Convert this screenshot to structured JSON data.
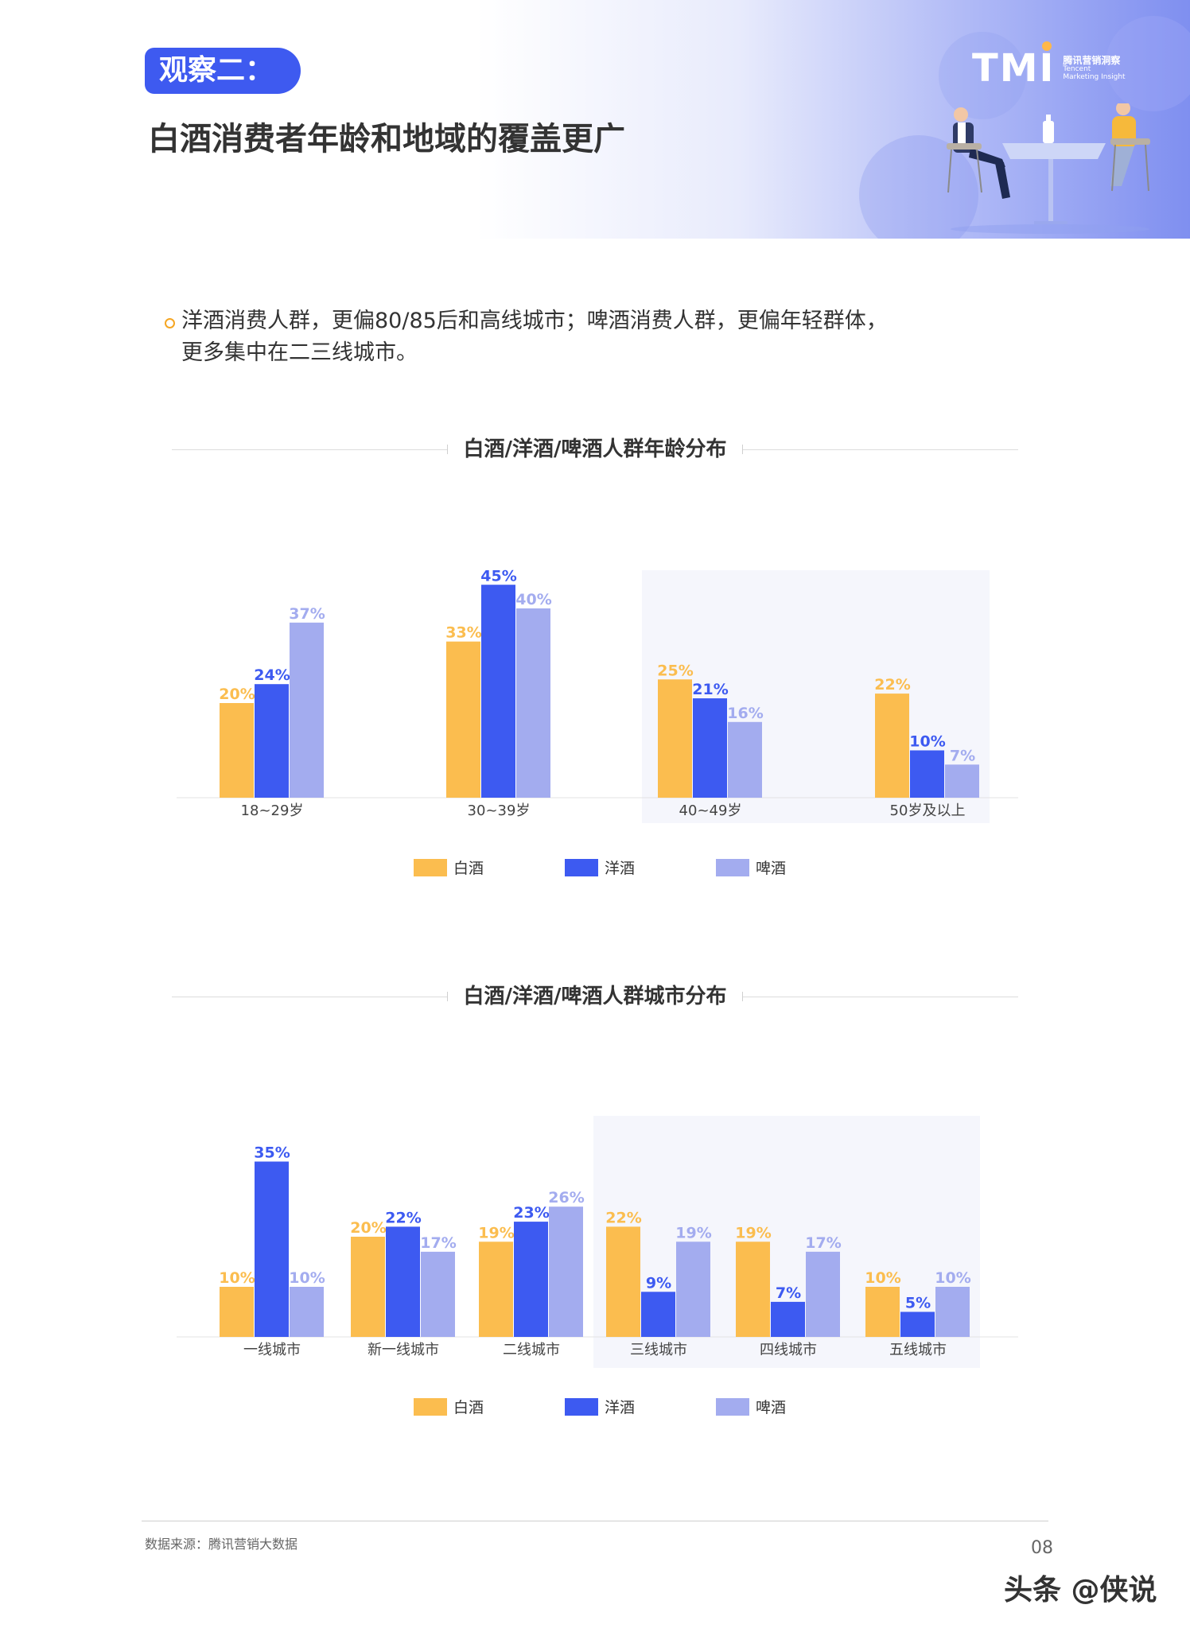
{
  "header": {
    "badge": "观察二：",
    "title": "白酒消费者年龄和地域的覆盖更广",
    "logo_mark": "TMI",
    "logo_cn": "腾讯营销洞察",
    "logo_en_1": "Tencent",
    "logo_en_2": "Marketing Insight"
  },
  "bullet": {
    "line1": "洋酒消费人群，更偏80/85后和高线城市；啤酒消费人群，更偏年轻群体，",
    "line2": "更多集中在二三线城市。"
  },
  "colors": {
    "baijiu": "#fbbd4f",
    "yangjiu": "#3d5af1",
    "pijiu": "#a3acef",
    "highlight": "#f5f6fc"
  },
  "chart_data": [
    {
      "type": "bar",
      "title": "白酒/洋酒/啤酒人群年龄分布",
      "categories": [
        "18~29岁",
        "30~39岁",
        "40~49岁",
        "50岁及以上"
      ],
      "series": [
        {
          "name": "白酒",
          "values": [
            20,
            33,
            25,
            22
          ],
          "labels": [
            "20%",
            "33%",
            "25%",
            "22%"
          ]
        },
        {
          "name": "洋酒",
          "values": [
            24,
            45,
            21,
            10
          ],
          "labels": [
            "24%",
            "45%",
            "21%",
            "10%"
          ]
        },
        {
          "name": "啤酒",
          "values": [
            37,
            40,
            16,
            7
          ],
          "labels": [
            "37%",
            "40%",
            "16%",
            "7%"
          ]
        }
      ],
      "unit": "%",
      "legend_position": "bottom",
      "highlighted_categories": [
        "40~49岁",
        "50岁及以上"
      ]
    },
    {
      "type": "bar",
      "title": "白酒/洋酒/啤酒人群城市分布",
      "categories": [
        "一线城市",
        "新一线城市",
        "二线城市",
        "三线城市",
        "四线城市",
        "五线城市"
      ],
      "series": [
        {
          "name": "白酒",
          "values": [
            10,
            20,
            19,
            22,
            19,
            10
          ],
          "labels": [
            "10%",
            "20%",
            "19%",
            "22%",
            "19%",
            "10%"
          ]
        },
        {
          "name": "洋酒",
          "values": [
            35,
            22,
            23,
            9,
            7,
            5
          ],
          "labels": [
            "35%",
            "22%",
            "23%",
            "9%",
            "7%",
            "5%"
          ]
        },
        {
          "name": "啤酒",
          "values": [
            10,
            17,
            26,
            19,
            17,
            10
          ],
          "labels": [
            "10%",
            "17%",
            "26%",
            "19%",
            "17%",
            "10%"
          ]
        }
      ],
      "unit": "%",
      "legend_position": "bottom",
      "highlighted_categories": [
        "三线城市",
        "四线城市",
        "五线城市"
      ]
    }
  ],
  "legend": {
    "baijiu": "白酒",
    "yangjiu": "洋酒",
    "pijiu": "啤酒"
  },
  "footer": {
    "source": "数据来源：腾讯营销大数据",
    "page": "08",
    "watermark": "头条 @侠说"
  }
}
